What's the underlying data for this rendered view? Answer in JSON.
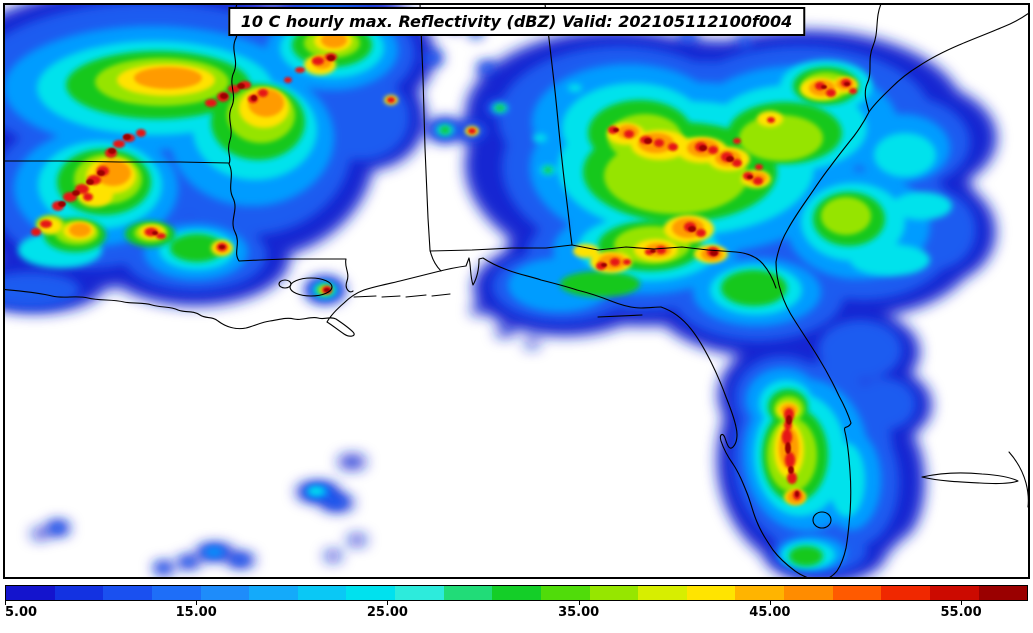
{
  "chart_data": {
    "type": "heatmap",
    "title": "10 C hourly max. Reflectivity (dBZ) Valid: 202105112100f004",
    "field": "hourly max. Reflectivity",
    "units": "dBZ",
    "valid_label": "Valid: 202105112100f004",
    "region_note": "Radar reflectivity shaded over the southeastern United States (Louisiana, Mississippi, Alabama, Georgia, Florida, adjacent Gulf of Mexico and Atlantic); black state borders and coastlines on white background",
    "colorbar": {
      "orientation": "horizontal",
      "position": "bottom",
      "range": [
        5,
        58.5
      ],
      "tick_values": [
        5,
        15,
        25,
        35,
        45,
        55
      ],
      "tick_labels": [
        "5.00",
        "15.00",
        "25.00",
        "35.00",
        "45.00",
        "55.00"
      ],
      "stops": [
        {
          "value": 5,
          "color": "#1414CD"
        },
        {
          "value": 7.5,
          "color": "#1332E1"
        },
        {
          "value": 10,
          "color": "#1A50F0"
        },
        {
          "value": 12.5,
          "color": "#1E6EF8"
        },
        {
          "value": 15,
          "color": "#1E8CFA"
        },
        {
          "value": 17.5,
          "color": "#14AAFA"
        },
        {
          "value": 20,
          "color": "#0AC8F5"
        },
        {
          "value": 22.5,
          "color": "#00E1EE"
        },
        {
          "value": 25,
          "color": "#2DEBDC"
        },
        {
          "value": 27.5,
          "color": "#21DC78"
        },
        {
          "value": 30,
          "color": "#14CE28"
        },
        {
          "value": 32.5,
          "color": "#50DC0A"
        },
        {
          "value": 35,
          "color": "#96E600"
        },
        {
          "value": 37.5,
          "color": "#D7EE00"
        },
        {
          "value": 40,
          "color": "#FFE400"
        },
        {
          "value": 42.5,
          "color": "#FFB400"
        },
        {
          "value": 45,
          "color": "#FF8C00"
        },
        {
          "value": 47.5,
          "color": "#FF5A00"
        },
        {
          "value": 50,
          "color": "#F02800"
        },
        {
          "value": 52.5,
          "color": "#CC0A00"
        },
        {
          "value": 55,
          "color": "#9A0000"
        }
      ]
    },
    "echo_regions": [
      {
        "area": "Arkansas / Louisiana / Mississippi",
        "description": "large squall complex, widespread 5-35 dBZ with embedded 45-55+ dBZ cores in a NE-SW line"
      },
      {
        "area": "central Alabama / Georgia / South Carolina",
        "description": "broad shield 5-35 dBZ with clusters of 45-55+ dBZ convective cells"
      },
      {
        "area": "east-central Florida peninsula",
        "description": "north-south convective band with 45-55+ dBZ cores surrounded by 5-30 dBZ"
      },
      {
        "area": "Gulf of Mexico",
        "description": "scattered weak 5-25 dBZ showers"
      },
      {
        "area": "New Orleans / Lake Pontchartrain",
        "description": "isolated strong cell 50+ dBZ"
      }
    ]
  }
}
